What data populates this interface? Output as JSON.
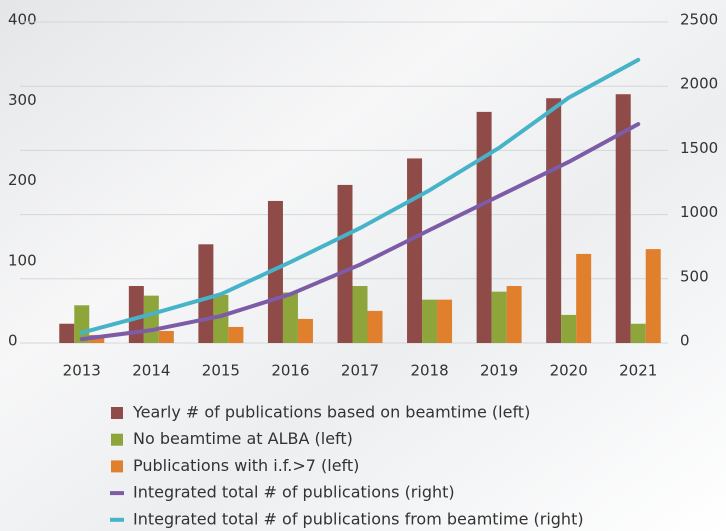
{
  "chart_data": {
    "type": "bar-line",
    "categories": [
      "2013",
      "2014",
      "2015",
      "2016",
      "2017",
      "2018",
      "2019",
      "2020",
      "2021"
    ],
    "series": [
      {
        "name": "Yearly # of publications based on beamtime (left)",
        "color": "#8e4b47",
        "type": "bar",
        "axis": "y",
        "values": [
          24,
          71,
          123,
          177,
          197,
          230,
          288,
          305,
          310
        ]
      },
      {
        "name": "No beamtime at ALBA (left)",
        "color": "#8ea53c",
        "type": "bar",
        "axis": "y",
        "values": [
          47,
          59,
          60,
          63,
          71,
          54,
          64,
          35,
          24
        ]
      },
      {
        "name": "Publications with i.f.>7 (left)",
        "color": "#e07f2c",
        "type": "bar",
        "axis": "y",
        "values": [
          10,
          15,
          20,
          30,
          40,
          54,
          71,
          111,
          117
        ]
      },
      {
        "name": "Integrated total # of publications (right)",
        "color": "#7d5ba6",
        "type": "line",
        "axis": "y2",
        "values": [
          30,
          100,
          210,
          380,
          610,
          880,
          1145,
          1410,
          1705
        ]
      },
      {
        "name": "Integrated total # of publications from beamtime (right)",
        "color": "#46b3c8",
        "type": "line",
        "axis": "y2",
        "values": [
          80,
          225,
          380,
          630,
          895,
          1190,
          1520,
          1910,
          2205
        ]
      }
    ],
    "ylim": [
      0,
      400
    ],
    "yticks": [
      0,
      100,
      200,
      300,
      400
    ],
    "y2lim": [
      0,
      2500
    ],
    "y2ticks": [
      0,
      500,
      1000,
      1500,
      2000,
      2500
    ],
    "grid": true,
    "legend": "bottom"
  }
}
